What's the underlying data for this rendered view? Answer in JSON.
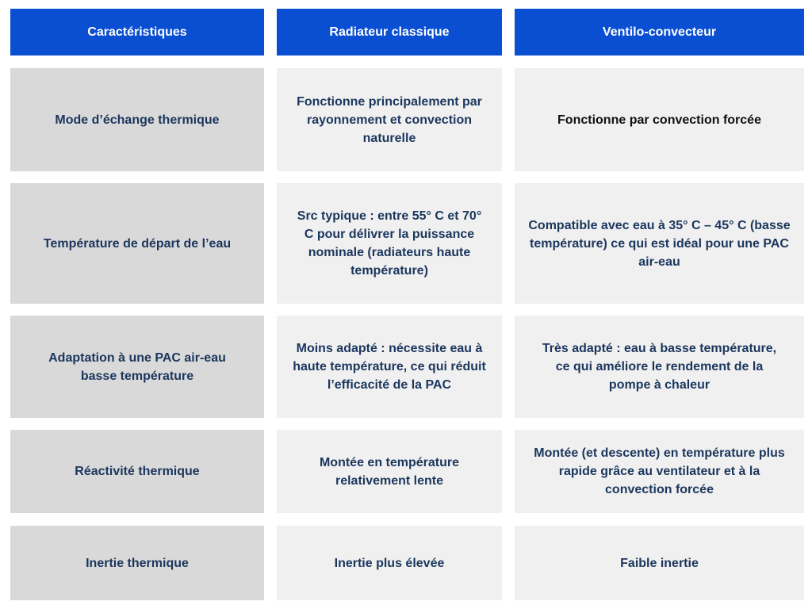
{
  "headers": [
    "Caractéristiques",
    "Radiateur classique",
    "Ventilo-convecteur"
  ],
  "rows": [
    [
      "Mode d’échange thermique",
      "Fonctionne principalement par rayonnement et convection naturelle",
      "Fonctionne par convection forcée"
    ],
    [
      "Température de départ de l’eau",
      "Src typique : entre 55° C et 70° C pour délivrer la puissance nominale (radiateurs haute température)",
      "Compatible avec eau à 35° C – 45° C (basse température) ce qui est idéal pour une PAC air-eau"
    ],
    [
      "Adaptation à une PAC air-eau basse température",
      "Moins adapté : nécessite eau à haute température, ce qui réduit l’efficacité de la PAC",
      "Très adapté : eau à basse température, ce qui améliore le rendement de la pompe à chaleur"
    ],
    [
      "Réactivité thermique",
      "Montée en température relativement lente",
      "Montée (et descente) en température plus rapide grâce au ventilateur et à la convection forcée"
    ],
    [
      "Inertie thermique",
      "Inertie plus élevée",
      "Faible inertie"
    ]
  ],
  "colors": {
    "header": "#0a4fd2",
    "label_cell": "#d9d9d9",
    "value_cell": "#f0f0f0",
    "text": "#1b365d"
  }
}
